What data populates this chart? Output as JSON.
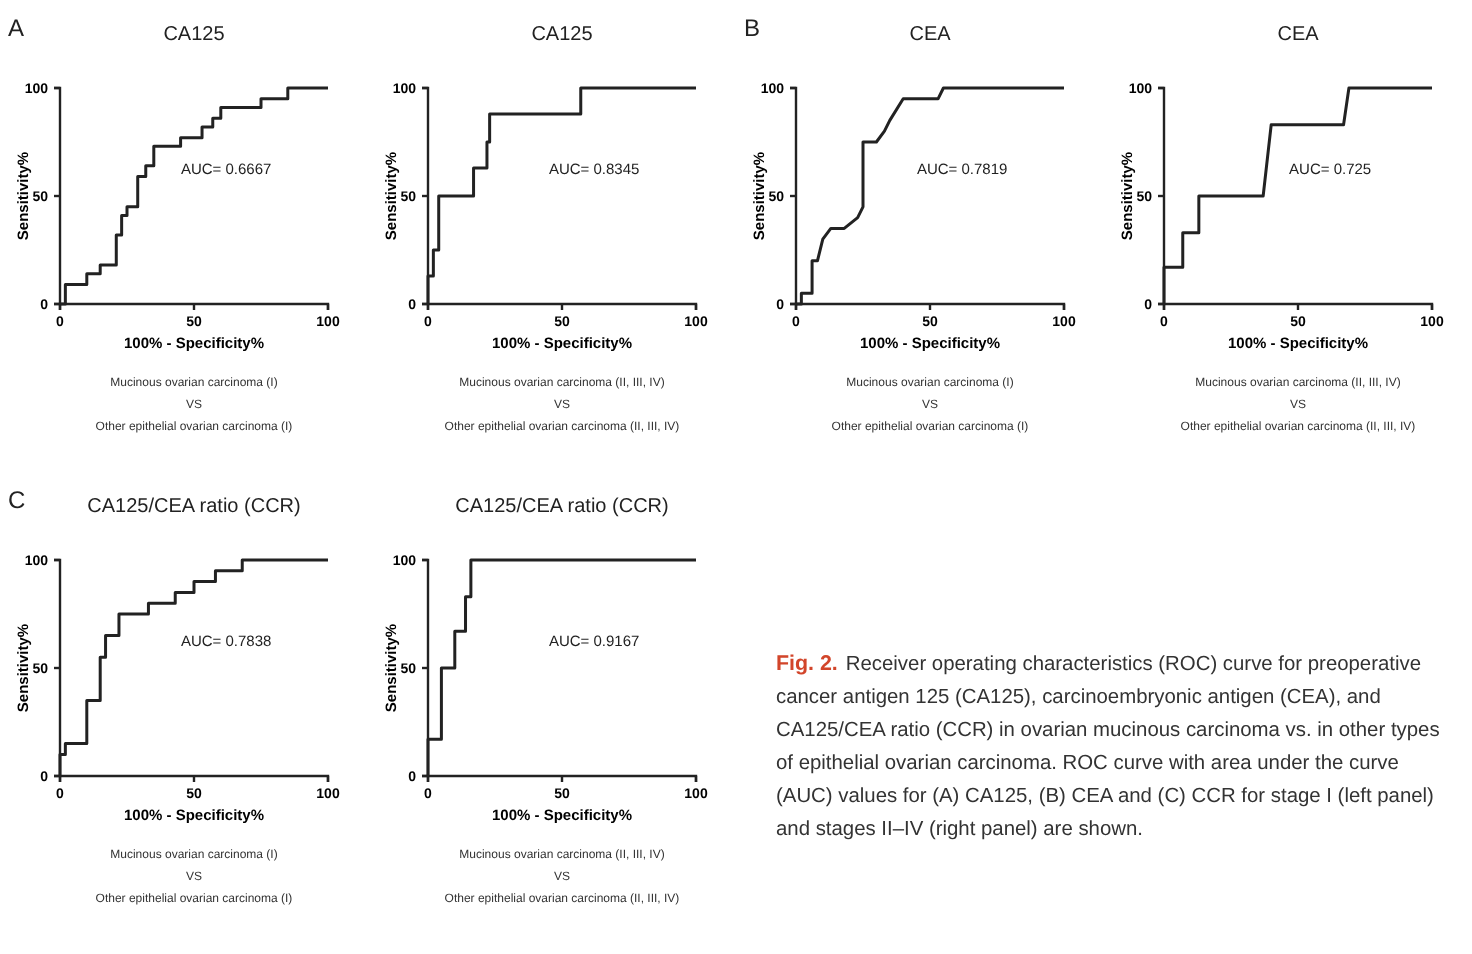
{
  "chart_data": [
    {
      "type": "line",
      "title": "CA125",
      "xlabel": "100% - Specificity%",
      "ylabel": "Sensitivity%",
      "xlim": [
        0,
        100
      ],
      "ylim": [
        0,
        100
      ],
      "xticks": [
        0,
        50,
        100
      ],
      "yticks": [
        0,
        50,
        100
      ],
      "marker": "none",
      "annotations": [
        "AUC= 0.6667",
        "Mucinous ovarian carcinoma (I)",
        "VS",
        "Other epithelial ovarian carcinoma (I)",
        "A"
      ],
      "series": [
        {
          "color": "#222222",
          "x": [
            0,
            2,
            2,
            10,
            10,
            15,
            15,
            21,
            21,
            23,
            23,
            25,
            25,
            29,
            29,
            32,
            32,
            35,
            35,
            45,
            45,
            53,
            53,
            57,
            57,
            60,
            60,
            75,
            75,
            85,
            85,
            100
          ],
          "values": [
            0,
            0,
            9,
            9,
            14,
            14,
            18,
            18,
            32,
            32,
            41,
            41,
            45,
            45,
            59,
            59,
            64,
            64,
            73,
            73,
            77,
            77,
            82,
            82,
            86,
            86,
            91,
            91,
            95,
            95,
            100,
            100
          ]
        }
      ]
    },
    {
      "type": "line",
      "title": "CA125",
      "xlabel": "100% - Specificity%",
      "ylabel": "Sensitivity%",
      "xlim": [
        0,
        100
      ],
      "ylim": [
        0,
        100
      ],
      "xticks": [
        0,
        50,
        100
      ],
      "yticks": [
        0,
        50,
        100
      ],
      "marker": "none",
      "annotations": [
        "AUC= 0.8345",
        "Mucinous ovarian carcinoma (II, III, IV)",
        "VS",
        "Other epithelial ovarian carcinoma (II, III, IV)"
      ],
      "series": [
        {
          "color": "#222222",
          "x": [
            0,
            0,
            2,
            2,
            4,
            4,
            17,
            17,
            22,
            22,
            23,
            23,
            57,
            57,
            100
          ],
          "values": [
            0,
            13,
            13,
            25,
            25,
            50,
            50,
            63,
            63,
            75,
            75,
            88,
            88,
            100,
            100
          ]
        }
      ]
    },
    {
      "type": "line",
      "title": "CEA",
      "xlabel": "100% - Specificity%",
      "ylabel": "Sensitivity%",
      "xlim": [
        0,
        100
      ],
      "ylim": [
        0,
        100
      ],
      "xticks": [
        0,
        50,
        100
      ],
      "yticks": [
        0,
        50,
        100
      ],
      "marker": "none",
      "annotations": [
        "AUC= 0.7819",
        "Mucinous ovarian carcinoma (I)",
        "VS",
        "Other epithelial ovarian carcinoma (I)",
        "B"
      ],
      "series": [
        {
          "color": "#222222",
          "x": [
            0,
            2,
            2,
            6,
            6,
            8,
            10,
            13,
            18,
            23,
            25,
            25,
            30,
            33,
            35,
            40,
            53,
            55,
            100
          ],
          "values": [
            0,
            0,
            5,
            5,
            20,
            20,
            30,
            35,
            35,
            40,
            45,
            75,
            75,
            80,
            85,
            95,
            95,
            100,
            100
          ]
        }
      ]
    },
    {
      "type": "line",
      "title": "CEA",
      "xlabel": "100% - Specificity%",
      "ylabel": "Sensitivity%",
      "xlim": [
        0,
        100
      ],
      "ylim": [
        0,
        100
      ],
      "xticks": [
        0,
        50,
        100
      ],
      "yticks": [
        0,
        50,
        100
      ],
      "marker": "none",
      "annotations": [
        "AUC= 0.725",
        "Mucinous ovarian carcinoma (II, III, IV)",
        "VS",
        "Other epithelial ovarian carcinoma (II, III, IV)"
      ],
      "series": [
        {
          "color": "#222222",
          "x": [
            0,
            0,
            7,
            7,
            13,
            13,
            37,
            40,
            67,
            69,
            100
          ],
          "values": [
            0,
            17,
            17,
            33,
            33,
            50,
            50,
            83,
            83,
            100,
            100
          ]
        }
      ]
    },
    {
      "type": "line",
      "title": "CA125/CEA ratio (CCR)",
      "xlabel": "100% - Specificity%",
      "ylabel": "Sensitivity%",
      "xlim": [
        0,
        100
      ],
      "ylim": [
        0,
        100
      ],
      "xticks": [
        0,
        50,
        100
      ],
      "yticks": [
        0,
        50,
        100
      ],
      "marker": "none",
      "annotations": [
        "AUC= 0.7838",
        "Mucinous ovarian carcinoma (I)",
        "VS",
        "Other epithelial ovarian carcinoma (I)",
        "C"
      ],
      "series": [
        {
          "color": "#222222",
          "x": [
            0,
            0,
            2,
            2,
            10,
            10,
            15,
            15,
            17,
            17,
            22,
            22,
            33,
            33,
            43,
            43,
            50,
            50,
            58,
            58,
            68,
            68,
            100
          ],
          "values": [
            0,
            10,
            10,
            15,
            15,
            35,
            35,
            55,
            55,
            65,
            65,
            75,
            75,
            80,
            80,
            85,
            85,
            90,
            90,
            95,
            95,
            100,
            100
          ]
        }
      ]
    },
    {
      "type": "line",
      "title": "CA125/CEA ratio (CCR)",
      "xlabel": "100% - Specificity%",
      "ylabel": "Sensitivity%",
      "xlim": [
        0,
        100
      ],
      "ylim": [
        0,
        100
      ],
      "xticks": [
        0,
        50,
        100
      ],
      "yticks": [
        0,
        50,
        100
      ],
      "marker": "none",
      "annotations": [
        "AUC= 0.9167",
        "Mucinous ovarian carcinoma (II, III, IV)",
        "VS",
        "Other epithelial ovarian carcinoma (II, III, IV)"
      ],
      "series": [
        {
          "color": "#222222",
          "x": [
            0,
            0,
            5,
            5,
            10,
            10,
            14,
            14,
            16,
            16,
            100
          ],
          "values": [
            0,
            17,
            17,
            50,
            50,
            67,
            67,
            83,
            83,
            100,
            100
          ]
        }
      ]
    },
    {
      "type": "other",
      "title": "Fig. 2.",
      "annotations": [
        "Receiver operating characteristics (ROC) curve for preoperative cancer antigen 125 (CA125), carcinoembryonic antigen (CEA), and CA125/CEA ratio (CCR) in ovarian mucinous carcinoma vs. in other types of epithelial ovarian carcinoma. ROC curve with area under the curve (AUC) values for (A) CA125, (B) CEA and (C) CCR for stage I (left panel) and stages II–IV (right panel) are shown."
      ]
    }
  ]
}
